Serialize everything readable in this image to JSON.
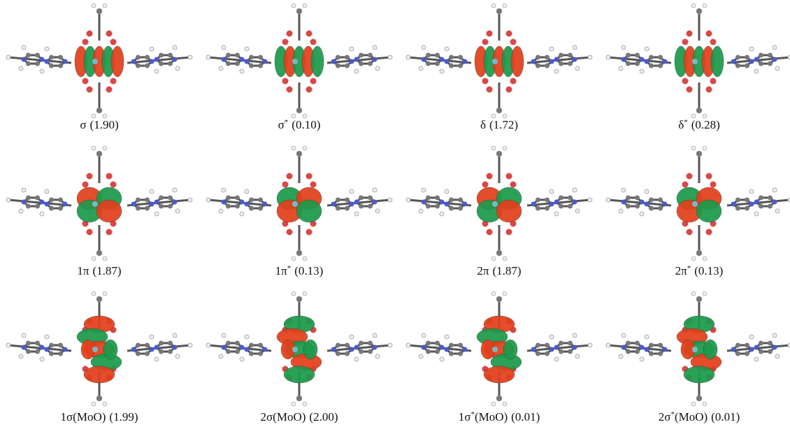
{
  "panels": [
    {
      "label": "σ",
      "occupation": "(1.90)"
    },
    {
      "label": "σ",
      "superscript": "*",
      "occupation": "(0.10)"
    },
    {
      "label": "δ",
      "occupation": "(1.72)"
    },
    {
      "label": "δ",
      "superscript": "*",
      "occupation": "(0.28)"
    },
    {
      "label": "1π",
      "occupation": "(1.87)"
    },
    {
      "label": "1π",
      "superscript": "*",
      "occupation": "(0.13)"
    },
    {
      "label": "2π",
      "occupation": "(1.87)"
    },
    {
      "label": "2π",
      "superscript": "*",
      "occupation": "(0.13)"
    },
    {
      "label": "1σ(MoO)",
      "occupation": "(1.99)"
    },
    {
      "label": "2σ(MoO)",
      "occupation": "(2.00)"
    },
    {
      "label": "1σ",
      "superscript": "*",
      "label_suffix": "(MoO)",
      "occupation": "(0.01)"
    },
    {
      "label": "2σ",
      "superscript": "*",
      "label_suffix": "(MoO)",
      "occupation": "(0.01)"
    }
  ]
}
